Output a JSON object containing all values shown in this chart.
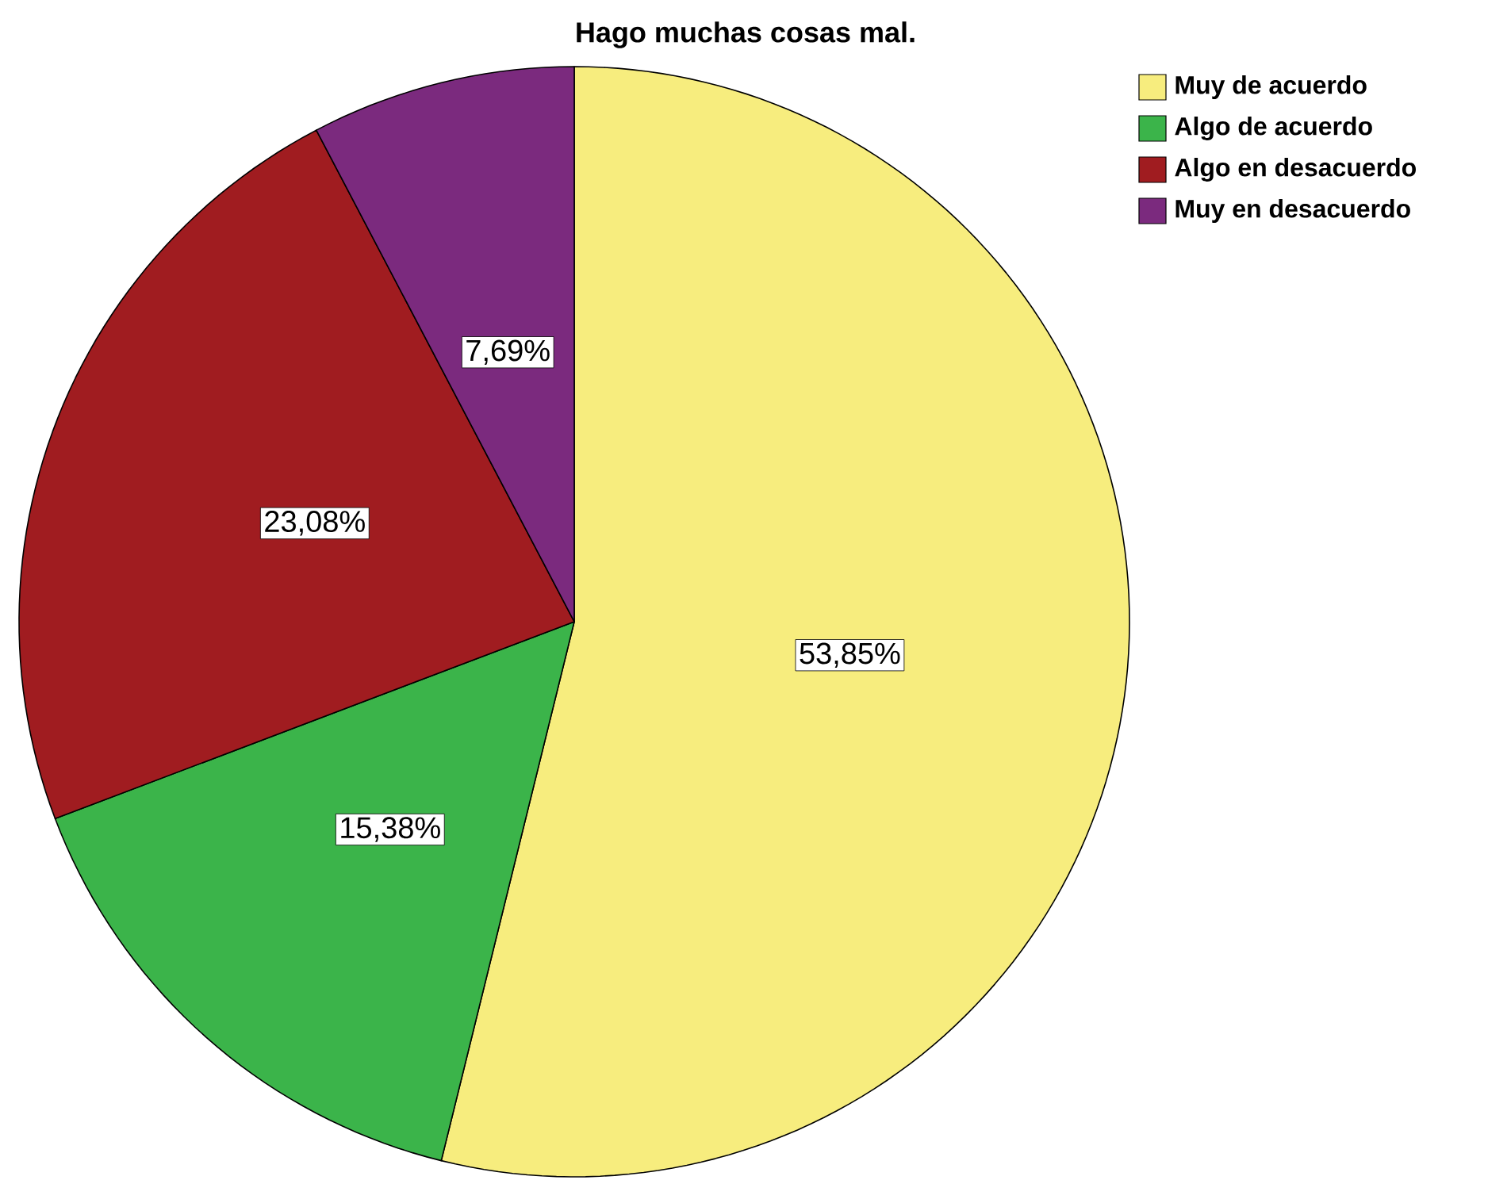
{
  "chart_data": {
    "type": "pie",
    "title": "Hago muchas cosas mal.",
    "categories": [
      "Muy de acuerdo",
      "Algo de acuerdo",
      "Algo en desacuerdo",
      "Muy en desacuerdo"
    ],
    "values": [
      53.85,
      15.38,
      23.08,
      7.69
    ],
    "colors": [
      "#f7ed7e",
      "#3bb44a",
      "#a01c20",
      "#7b2a7e"
    ],
    "value_labels": [
      "53,85%",
      "15,38%",
      "23,08%",
      "7,69%"
    ],
    "legend": "top right"
  }
}
